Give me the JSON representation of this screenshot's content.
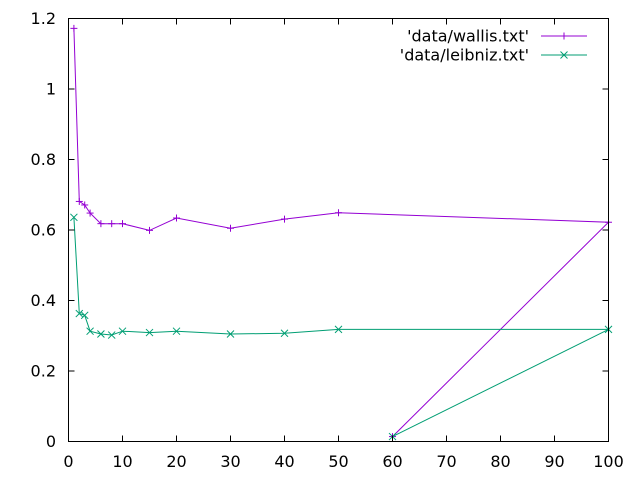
{
  "chart_data": {
    "type": "line",
    "xlim": [
      0,
      100
    ],
    "ylim": [
      0,
      1.2
    ],
    "x_ticks": [
      0,
      10,
      20,
      30,
      40,
      50,
      60,
      70,
      80,
      90,
      100
    ],
    "y_ticks": [
      0,
      0.2,
      0.4,
      0.6,
      0.8,
      1,
      1.2
    ],
    "x_tick_labels": [
      "0",
      "10",
      "20",
      "30",
      "40",
      "50",
      "60",
      "70",
      "80",
      "90",
      "100"
    ],
    "y_tick_labels": [
      "0",
      "0.2",
      "0.4",
      "0.6",
      "0.8",
      "1",
      "1.2"
    ],
    "grid": false,
    "legend_position": "top-right",
    "series": [
      {
        "name": "'data/wallis.txt'",
        "color": "#9400d3",
        "marker": "plus",
        "x": [
          1,
          2,
          3,
          4,
          6,
          8,
          10,
          15,
          20,
          30,
          40,
          50,
          100,
          60
        ],
        "y": [
          1.172,
          0.681,
          0.671,
          0.648,
          0.618,
          0.618,
          0.618,
          0.599,
          0.634,
          0.605,
          0.631,
          0.649,
          0.622,
          0.014
        ]
      },
      {
        "name": "'data/leibniz.txt'",
        "color": "#009e73",
        "marker": "cross",
        "x": [
          1,
          2,
          3,
          4,
          6,
          8,
          10,
          15,
          20,
          30,
          40,
          50,
          100,
          60
        ],
        "y": [
          0.636,
          0.363,
          0.358,
          0.313,
          0.305,
          0.302,
          0.313,
          0.309,
          0.313,
          0.305,
          0.307,
          0.318,
          0.318,
          0.014
        ]
      }
    ]
  }
}
